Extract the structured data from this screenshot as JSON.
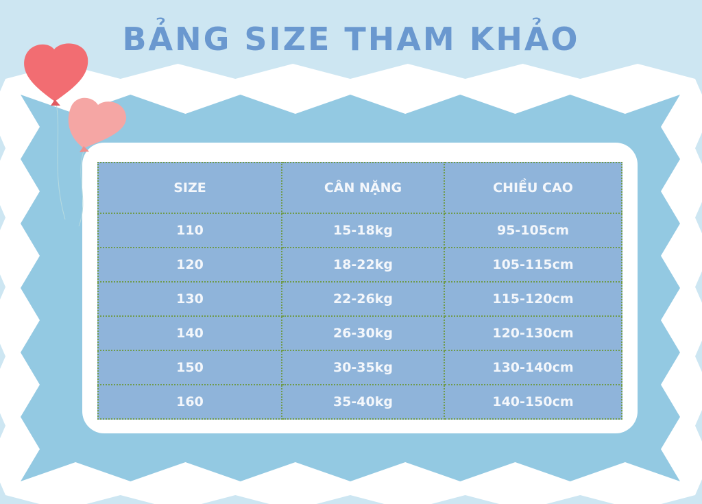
{
  "title": "BẢNG SIZE THAM KHẢO",
  "colors": {
    "background": "#cde6f2",
    "frame_blue": "#93c9e2",
    "title": "#6a98cf",
    "cell": "#8fb4da",
    "border": "#6f9a4a",
    "heart_red": "#f26d72",
    "heart_pink": "#f5a6a4"
  },
  "table": {
    "headers": [
      "SIZE",
      "CÂN NẶNG",
      "CHIỀU CAO"
    ],
    "rows": [
      [
        "110",
        "15-18kg",
        "95-105cm"
      ],
      [
        "120",
        "18-22kg",
        "105-115cm"
      ],
      [
        "130",
        "22-26kg",
        "115-120cm"
      ],
      [
        "140",
        "26-30kg",
        "120-130cm"
      ],
      [
        "150",
        "30-35kg",
        "130-140cm"
      ],
      [
        "160",
        "35-40kg",
        "140-150cm"
      ]
    ]
  }
}
